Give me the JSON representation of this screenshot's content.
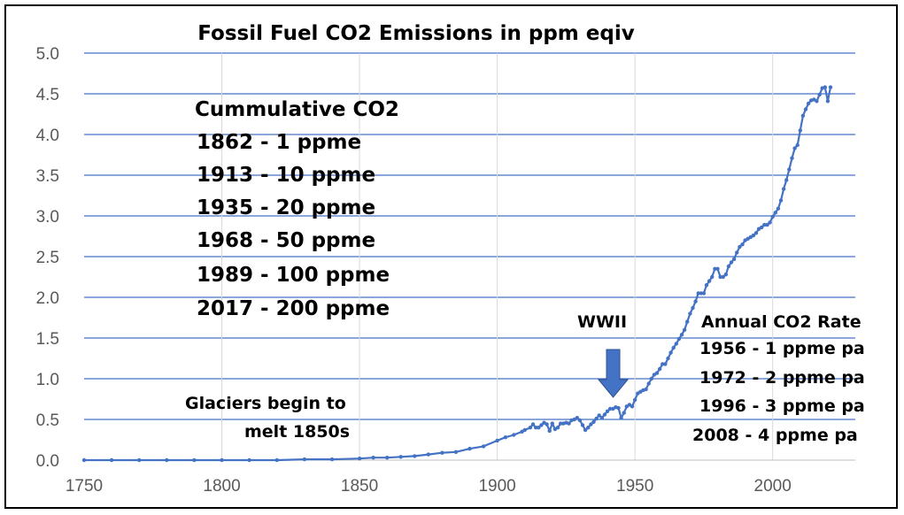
{
  "chart_data": {
    "type": "line",
    "title": "Fossil Fuel CO2 Emissions in ppm eqiv",
    "xlabel": "",
    "ylabel": "",
    "xlim": [
      1750,
      2030
    ],
    "ylim": [
      0,
      5
    ],
    "x_ticks": [
      "1750",
      "1800",
      "1850",
      "1900",
      "1950",
      "2000"
    ],
    "y_ticks": [
      "0.0",
      "0.5",
      "1.0",
      "1.5",
      "2.0",
      "2.5",
      "3.0",
      "3.5",
      "4.0",
      "4.5",
      "5.0"
    ],
    "grid": "horizontal",
    "series": [
      {
        "color": "#4472C4",
        "x": [
          1750,
          1760,
          1770,
          1780,
          1790,
          1800,
          1810,
          1820,
          1830,
          1840,
          1850,
          1855,
          1860,
          1865,
          1870,
          1875,
          1880,
          1885,
          1890,
          1895,
          1900,
          1903,
          1906,
          1909,
          1910,
          1912,
          1913,
          1914,
          1915,
          1916,
          1917,
          1918,
          1919,
          1920,
          1921,
          1922,
          1923,
          1924,
          1925,
          1926,
          1927,
          1928,
          1929,
          1930,
          1931,
          1932,
          1933,
          1934,
          1935,
          1936,
          1937,
          1938,
          1939,
          1940,
          1941,
          1942,
          1943,
          1944,
          1945,
          1946,
          1947,
          1948,
          1949,
          1950,
          1951,
          1952,
          1953,
          1954,
          1955,
          1956,
          1957,
          1958,
          1959,
          1960,
          1961,
          1962,
          1963,
          1964,
          1965,
          1966,
          1967,
          1968,
          1969,
          1970,
          1971,
          1972,
          1973,
          1974,
          1975,
          1976,
          1977,
          1978,
          1979,
          1980,
          1981,
          1982,
          1983,
          1984,
          1985,
          1986,
          1987,
          1988,
          1989,
          1990,
          1991,
          1992,
          1993,
          1994,
          1995,
          1996,
          1997,
          1998,
          1999,
          2000,
          2001,
          2002,
          2003,
          2004,
          2005,
          2006,
          2007,
          2008,
          2009,
          2010,
          2011,
          2012,
          2013,
          2014,
          2015,
          2016,
          2017,
          2018,
          2019,
          2020,
          2021
        ],
        "y": [
          0.0,
          0.0,
          0.0,
          0.0,
          0.0,
          0.0,
          0.0,
          0.0,
          0.01,
          0.01,
          0.02,
          0.03,
          0.03,
          0.04,
          0.05,
          0.07,
          0.09,
          0.1,
          0.14,
          0.17,
          0.24,
          0.28,
          0.31,
          0.35,
          0.37,
          0.4,
          0.44,
          0.4,
          0.4,
          0.43,
          0.46,
          0.44,
          0.36,
          0.45,
          0.38,
          0.4,
          0.45,
          0.45,
          0.46,
          0.45,
          0.49,
          0.5,
          0.52,
          0.49,
          0.43,
          0.37,
          0.4,
          0.44,
          0.47,
          0.51,
          0.55,
          0.52,
          0.56,
          0.6,
          0.63,
          0.63,
          0.65,
          0.64,
          0.52,
          0.58,
          0.66,
          0.68,
          0.66,
          0.74,
          0.82,
          0.84,
          0.86,
          0.87,
          0.94,
          1.0,
          1.05,
          1.07,
          1.12,
          1.18,
          1.18,
          1.25,
          1.32,
          1.38,
          1.43,
          1.49,
          1.54,
          1.6,
          1.7,
          1.8,
          1.87,
          1.95,
          2.05,
          2.05,
          2.05,
          2.15,
          2.2,
          2.25,
          2.35,
          2.35,
          2.25,
          2.25,
          2.28,
          2.38,
          2.43,
          2.47,
          2.55,
          2.62,
          2.65,
          2.7,
          2.72,
          2.74,
          2.76,
          2.79,
          2.84,
          2.86,
          2.89,
          2.89,
          2.92,
          2.99,
          3.04,
          3.09,
          3.19,
          3.33,
          3.44,
          3.57,
          3.71,
          3.83,
          3.87,
          4.05,
          4.23,
          4.31,
          4.38,
          4.42,
          4.43,
          4.41,
          4.49,
          4.57,
          4.58,
          4.41,
          4.58
        ]
      }
    ],
    "annotations": {
      "cumulative_title": "Cummulative CO2",
      "cumulative_lines": [
        "1862  - 1 ppme",
        "1913 - 10 ppme",
        "1935 - 20 ppme",
        "1968 - 50 ppme",
        "1989 - 100 ppme",
        "2017 - 200 ppme"
      ],
      "wwii_label": "WWII",
      "glaciers_line1": "Glaciers begin to",
      "glaciers_line2": "melt 1850s",
      "annual_title": "Annual  CO2 Rate",
      "annual_lines": [
        "1956 - 1 ppme pa",
        "1972 - 2 ppme pa",
        "1996 - 3 ppme pa",
        "2008 -  4 ppme pa"
      ],
      "arrow_color": "#4472C4"
    }
  }
}
